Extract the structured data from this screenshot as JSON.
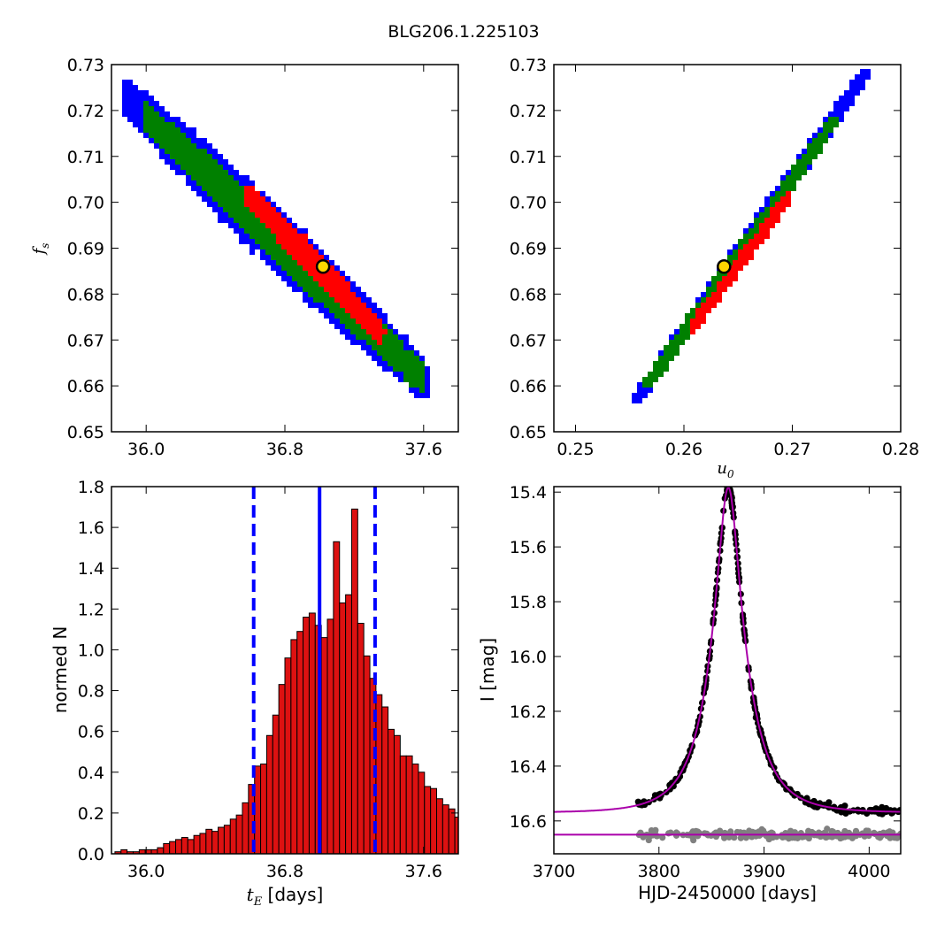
{
  "figure": {
    "title": "BLG206.1.225103"
  },
  "chart_data": [
    {
      "id": "tE_fs",
      "type": "heatmap",
      "xlabel": "",
      "ylabel_base": "f",
      "ylabel_sub": "s",
      "xlim": [
        35.8,
        37.8
      ],
      "ylim": [
        0.65,
        0.73
      ],
      "xticks": [
        36.0,
        36.8,
        37.6
      ],
      "xticklabels": [
        "36.0",
        "36.8",
        "37.6"
      ],
      "yticks": [
        0.65,
        0.66,
        0.67,
        0.68,
        0.69,
        0.7,
        0.71,
        0.72,
        0.73
      ],
      "yticklabels": [
        "0.65",
        "0.66",
        "0.67",
        "0.68",
        "0.69",
        "0.70",
        "0.71",
        "0.72",
        "0.73"
      ],
      "contour_levels": [
        {
          "name": "3-sigma",
          "color": "#0000ff",
          "centerline": [
            [
              35.87,
              0.7235
            ],
            [
              37.6,
              0.6615
            ]
          ],
          "width": 0.0135
        },
        {
          "name": "2-sigma",
          "color": "#008000",
          "centerline": [
            [
              35.98,
              0.7195
            ],
            [
              37.57,
              0.6625
            ]
          ],
          "width": 0.0085
        },
        {
          "name": "1-sigma",
          "color": "#ff0000",
          "centerline": [
            [
              36.58,
              0.702
            ],
            [
              37.34,
              0.672
            ]
          ],
          "width": 0.0055
        }
      ],
      "best_fit": {
        "x": 37.02,
        "y": 0.686,
        "color": "#ffd700"
      }
    },
    {
      "id": "u0_fs",
      "type": "heatmap",
      "xlabel_base": "u",
      "xlabel_sub": "0",
      "ylabel": "",
      "xlim": [
        0.248,
        0.28
      ],
      "ylim": [
        0.65,
        0.73
      ],
      "xticks": [
        0.25,
        0.26,
        0.27,
        0.28
      ],
      "xticklabels": [
        "0.25",
        "0.26",
        "0.27",
        "0.28"
      ],
      "yticks": [
        0.65,
        0.66,
        0.67,
        0.68,
        0.69,
        0.7,
        0.71,
        0.72,
        0.73
      ],
      "yticklabels": [
        "0.65",
        "0.66",
        "0.67",
        "0.68",
        "0.69",
        "0.70",
        "0.71",
        "0.72",
        "0.73"
      ],
      "contour_levels": [
        {
          "name": "3-sigma",
          "color": "#0000ff",
          "centerline": [
            [
              0.2555,
              0.658
            ],
            [
              0.2765,
              0.7285
            ]
          ],
          "width": 0.0038
        },
        {
          "name": "2-sigma",
          "color": "#008000",
          "centerline": [
            [
              0.2565,
              0.661
            ],
            [
              0.2735,
              0.718
            ]
          ],
          "width": 0.0028
        },
        {
          "name": "1-sigma",
          "color": "#ff0000",
          "centerline": [
            [
              0.2605,
              0.673
            ],
            [
              0.2695,
              0.702
            ]
          ],
          "width": 0.0016
        }
      ],
      "best_fit": {
        "x": 0.2637,
        "y": 0.686,
        "color": "#ffd700"
      }
    },
    {
      "id": "tE_hist",
      "type": "bar",
      "xlabel_base": "t",
      "xlabel_sub": "E",
      "xlabel_rest": "  [days]",
      "ylabel": "normed N",
      "xlim": [
        35.8,
        37.8
      ],
      "ylim": [
        0.0,
        1.8
      ],
      "xticks": [
        36.0,
        36.8,
        37.6
      ],
      "xticklabels": [
        "36.0",
        "36.8",
        "37.6"
      ],
      "yticks": [
        0.0,
        0.2,
        0.4,
        0.6,
        0.8,
        1.0,
        1.2,
        1.4,
        1.6,
        1.8
      ],
      "yticklabels": [
        "0.0",
        "0.2",
        "0.4",
        "0.6",
        "0.8",
        "1.0",
        "1.2",
        "1.4",
        "1.6",
        "1.8"
      ],
      "bar_color": "#dd1111",
      "bin_start": 35.82,
      "bin_width": 0.035,
      "values": [
        0.01,
        0.02,
        0.01,
        0.01,
        0.02,
        0.02,
        0.02,
        0.03,
        0.05,
        0.06,
        0.07,
        0.08,
        0.07,
        0.09,
        0.1,
        0.12,
        0.11,
        0.13,
        0.14,
        0.17,
        0.19,
        0.25,
        0.34,
        0.43,
        0.44,
        0.58,
        0.68,
        0.83,
        0.96,
        1.05,
        1.09,
        1.16,
        1.18,
        1.12,
        1.06,
        1.15,
        1.53,
        1.23,
        1.27,
        1.69,
        1.13,
        0.97,
        0.86,
        0.78,
        0.72,
        0.61,
        0.58,
        0.48,
        0.48,
        0.44,
        0.4,
        0.33,
        0.32,
        0.27,
        0.24,
        0.22,
        0.18,
        0.15,
        0.11,
        0.08,
        0.04,
        0.02,
        0.01
      ],
      "median": 37.0,
      "interval": [
        36.62,
        37.32
      ],
      "line_color": "#0000ff"
    },
    {
      "id": "lightcurve",
      "type": "scatter",
      "xlabel": "HJD-2450000 [days]",
      "ylabel": "I [mag]",
      "xlim": [
        3700,
        4030
      ],
      "ylim": [
        16.72,
        15.38
      ],
      "y_inverted": true,
      "xticks": [
        3700,
        3800,
        3900,
        4000
      ],
      "xticklabels": [
        "3700",
        "3800",
        "3900",
        "4000"
      ],
      "yticks": [
        15.4,
        15.6,
        15.8,
        16.0,
        16.2,
        16.4,
        16.6
      ],
      "yticklabels": [
        "15.4",
        "15.6",
        "15.8",
        "16.0",
        "16.2",
        "16.4",
        "16.6"
      ],
      "model": {
        "t0": 3866,
        "tE": 37.0,
        "u0": 0.2637,
        "fs": 0.686,
        "baseline_mag": 16.57,
        "color": "#aa00aa"
      },
      "data_range": [
        3780,
        4030
      ],
      "residual_baseline": 16.65,
      "data_color": "#000000",
      "residual_color": "#808080"
    }
  ]
}
